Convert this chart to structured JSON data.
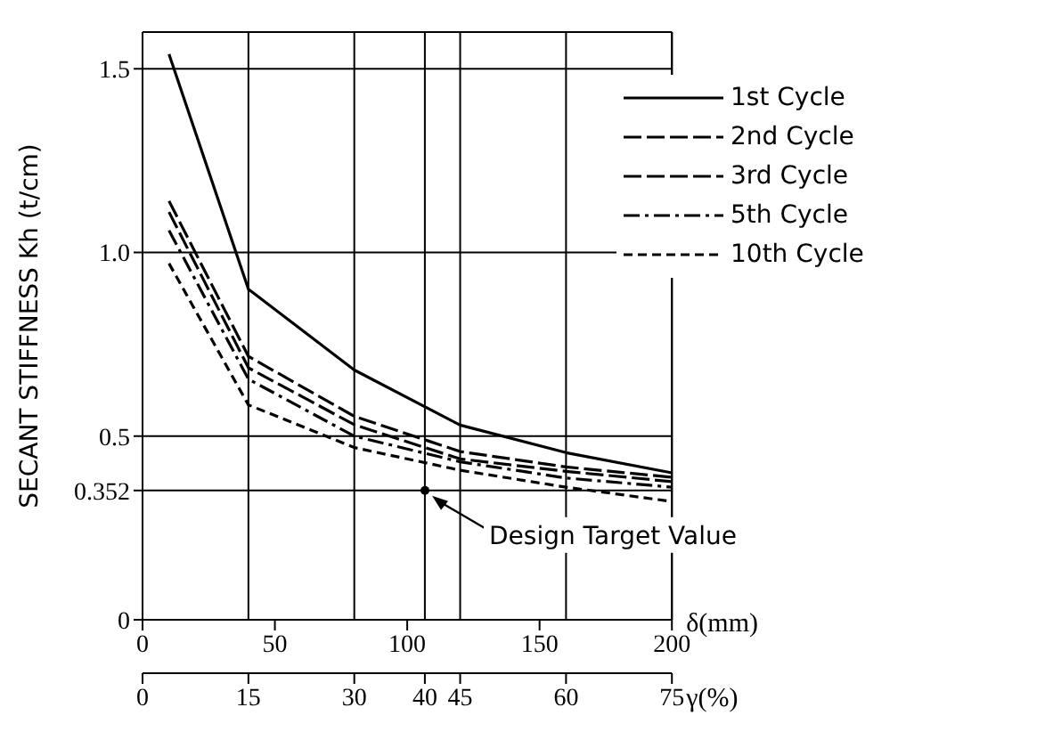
{
  "chart_data": {
    "type": "line",
    "ylabel": "SECANT STIFFNESS  Kh (t/cm)",
    "xlabel": "δ(mm)",
    "x2label": "γ(%)",
    "x": [
      10,
      40,
      80,
      120,
      160,
      200
    ],
    "series": [
      {
        "name": "1st Cycle",
        "color": "#000000",
        "line_style": "solid",
        "values": [
          1.54,
          0.9,
          0.68,
          0.53,
          0.455,
          0.4
        ]
      },
      {
        "name": "2nd Cycle",
        "color": "#000000",
        "line_style": "longdash",
        "values": [
          1.14,
          0.717,
          0.554,
          0.458,
          0.416,
          0.388
        ]
      },
      {
        "name": "3rd Cycle",
        "color": "#000000",
        "line_style": "longdash",
        "values": [
          1.11,
          0.686,
          0.531,
          0.438,
          0.404,
          0.376
        ]
      },
      {
        "name": "5th Cycle",
        "color": "#000000",
        "line_style": "dashdot",
        "values": [
          1.06,
          0.655,
          0.5,
          0.43,
          0.386,
          0.361
        ]
      },
      {
        "name": "10th Cycle",
        "color": "#000000",
        "line_style": "dashed",
        "values": [
          0.97,
          0.585,
          0.469,
          0.407,
          0.361,
          0.322
        ]
      }
    ],
    "xlim": [
      0,
      200
    ],
    "xticks": [
      0,
      50,
      100,
      150,
      200
    ],
    "x2lim": [
      0,
      75
    ],
    "x2ticks": [
      0,
      15,
      30,
      40,
      45,
      60,
      75
    ],
    "ylim": [
      0,
      1.6
    ],
    "yticks": [
      0,
      0.352,
      0.5,
      {
        "value": 1,
        "label": "1.0"
      },
      1.5
    ],
    "annotations": [
      {
        "text": "Design Target Value",
        "x": 106.7,
        "y": 0.352
      }
    ],
    "grid": true,
    "legend": "top right",
    "marker": "none"
  }
}
